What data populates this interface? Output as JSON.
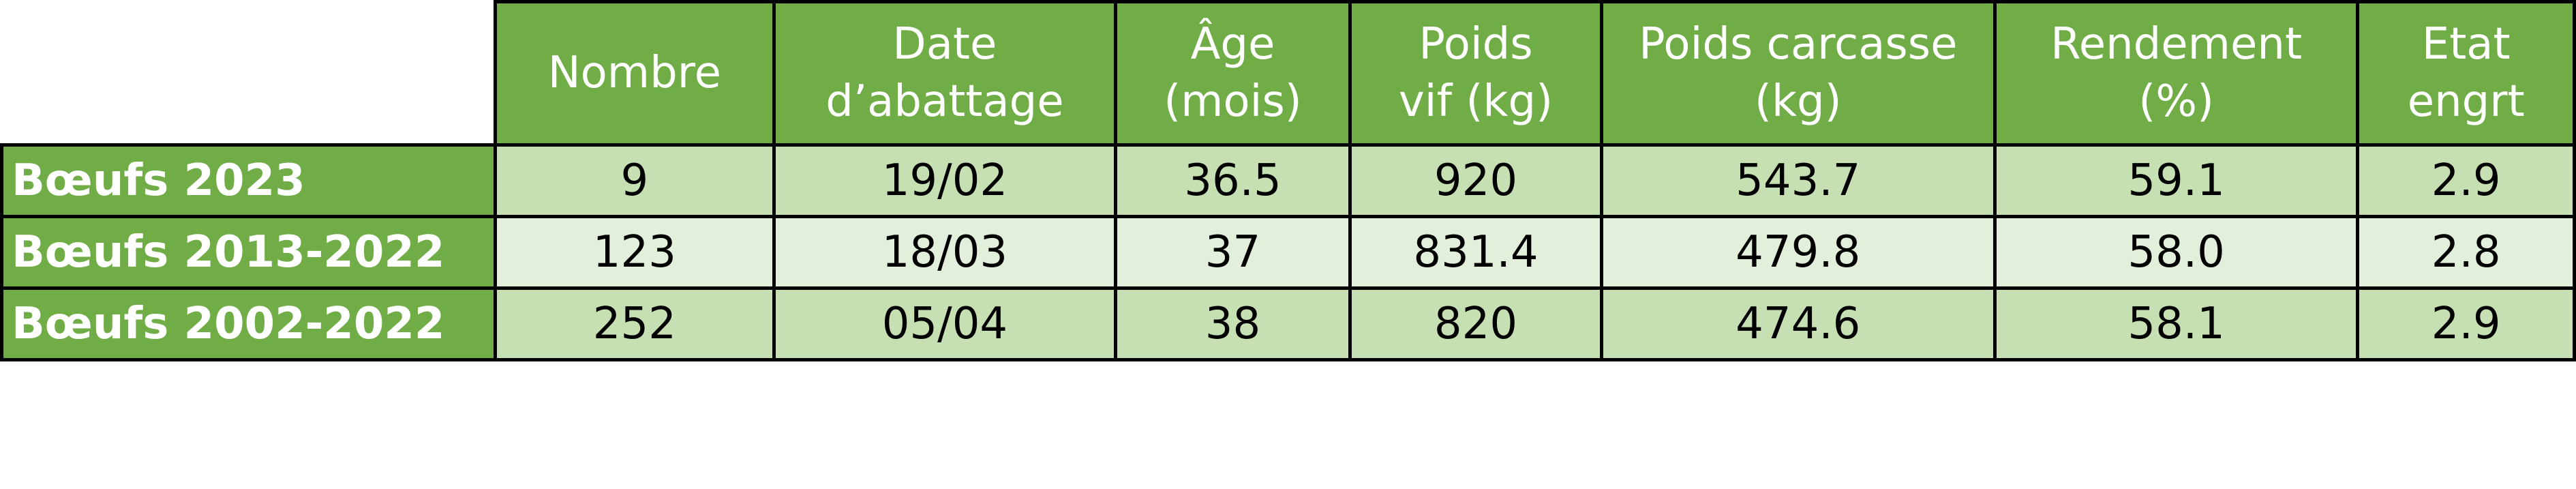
{
  "table": {
    "header": [
      [
        "Nombre"
      ],
      [
        "Date",
        "d’abattage"
      ],
      [
        "Âge",
        "(mois)"
      ],
      [
        "Poids",
        "vif (kg)"
      ],
      [
        "Poids carcasse",
        "(kg)"
      ],
      [
        "Rendement",
        "(%)"
      ],
      [
        "Etat",
        "engrt"
      ]
    ],
    "rows": [
      [
        "Bœufs 2023",
        "9",
        "19/02",
        "36.5",
        "920",
        "543.7",
        "59.1",
        "2.9"
      ],
      [
        "Bœufs 2013-2022",
        "123",
        "18/03",
        "37",
        "831.4",
        "479.8",
        "58.0",
        "2.8"
      ],
      [
        "Bœufs 2002-2022",
        "252",
        "05/04",
        "38",
        "820",
        "474.6",
        "58.1",
        "2.9"
      ]
    ]
  }
}
